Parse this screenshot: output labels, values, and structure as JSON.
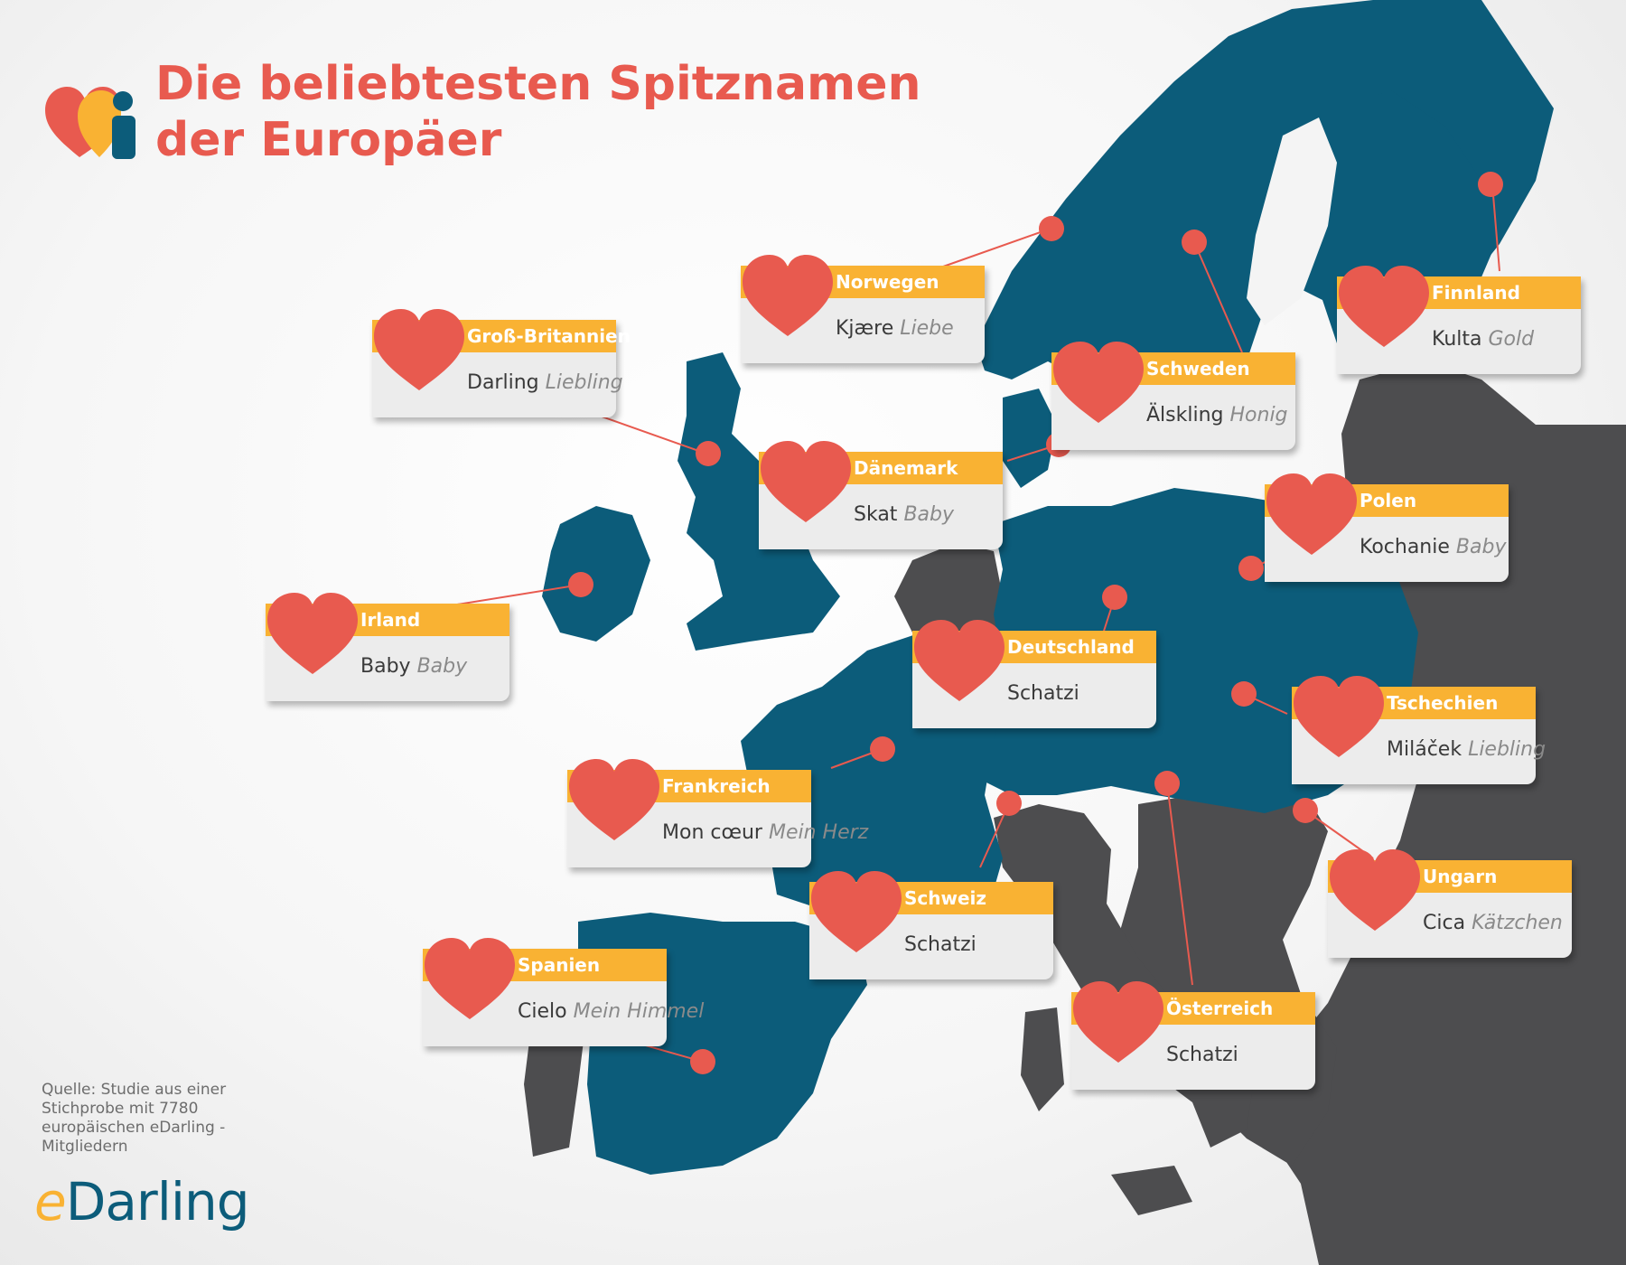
{
  "title": {
    "line1": "Die beliebtesten Spitznamen",
    "line2": "der Europäer"
  },
  "colors": {
    "land_highlight": "#0c5c7a",
    "land_other": "#4d4d4f",
    "accent_red": "#e85a4f",
    "label_bar": "#f9b233",
    "label_body": "#ececec"
  },
  "source": "Quelle: Studie aus einer Stichprobe mit 7780 europäischen eDarling -Mitgliedern",
  "brand": {
    "prefix": "e",
    "rest": "Darling"
  },
  "labels": [
    {
      "id": "norwegen",
      "country": "Norwegen",
      "nickname": "Kjære",
      "translation": "Liebe"
    },
    {
      "id": "gross-britannien",
      "country": "Groß-Britannien",
      "nickname": "Darling",
      "translation": "Liebling"
    },
    {
      "id": "finnland",
      "country": "Finnland",
      "nickname": "Kulta",
      "translation": "Gold"
    },
    {
      "id": "schweden",
      "country": "Schweden",
      "nickname": "Älskling",
      "translation": "Honig"
    },
    {
      "id": "daenemark",
      "country": "Dänemark",
      "nickname": "Skat",
      "translation": "Baby"
    },
    {
      "id": "polen",
      "country": "Polen",
      "nickname": "Kochanie",
      "translation": "Baby"
    },
    {
      "id": "irland",
      "country": "Irland",
      "nickname": "Baby",
      "translation": "Baby"
    },
    {
      "id": "deutschland",
      "country": "Deutschland",
      "nickname": "Schatzi",
      "translation": ""
    },
    {
      "id": "tschechien",
      "country": "Tschechien",
      "nickname": "Miláček",
      "translation": "Liebling"
    },
    {
      "id": "frankreich",
      "country": "Frankreich",
      "nickname": "Mon cœur",
      "translation": "Mein Herz"
    },
    {
      "id": "ungarn",
      "country": "Ungarn",
      "nickname": "Cica",
      "translation": "Kätzchen"
    },
    {
      "id": "schweiz",
      "country": "Schweiz",
      "nickname": "Schatzi",
      "translation": ""
    },
    {
      "id": "spanien",
      "country": "Spanien",
      "nickname": "Cielo",
      "translation": "Mein Himmel"
    },
    {
      "id": "oesterreich",
      "country": "Österreich",
      "nickname": "Schatzi",
      "translation": ""
    }
  ]
}
